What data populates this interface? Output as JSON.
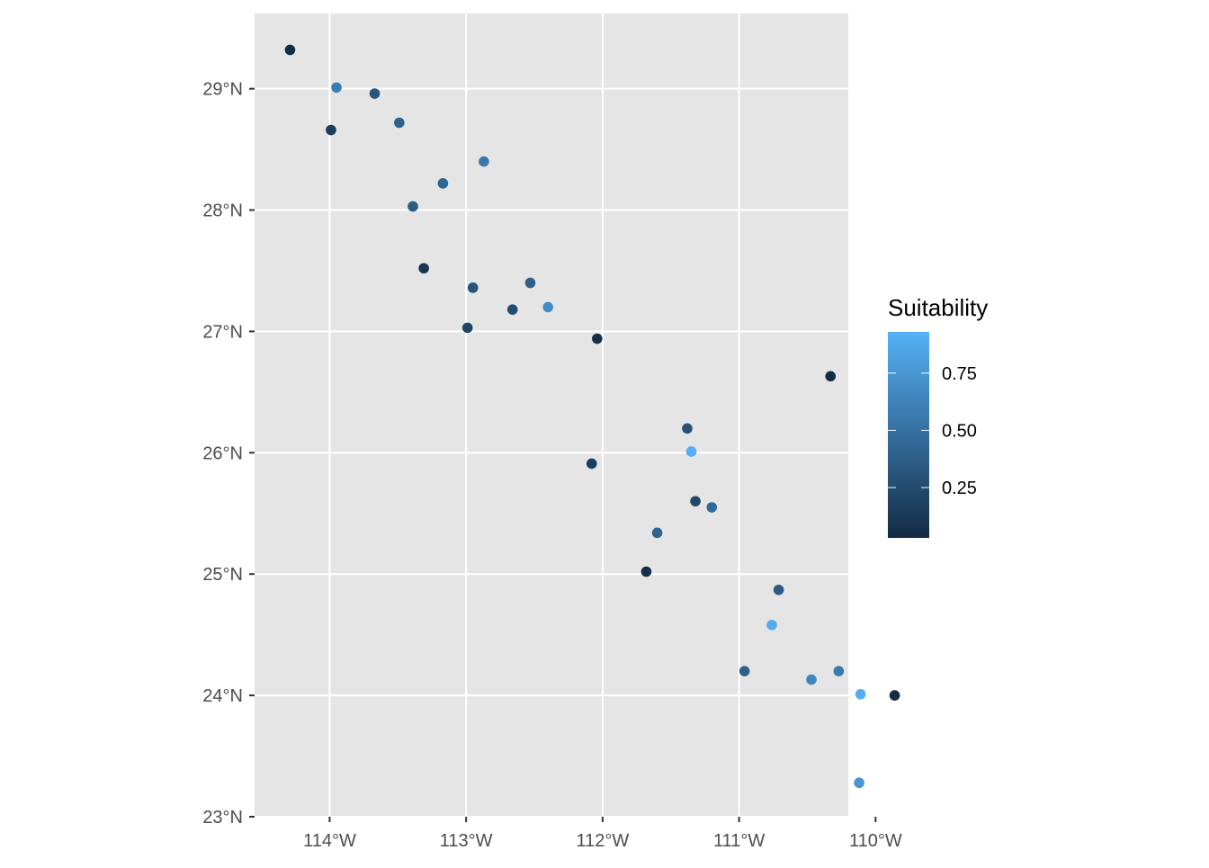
{
  "chart_data": {
    "type": "scatter",
    "title": "",
    "xlabel": "",
    "ylabel": "",
    "xlim": [
      -114.55,
      -110.2
    ],
    "ylim": [
      23.0,
      29.62
    ],
    "x_ticks": [
      {
        "value": -114,
        "label": "114°W"
      },
      {
        "value": -113,
        "label": "113°W"
      },
      {
        "value": -112,
        "label": "112°W"
      },
      {
        "value": -111,
        "label": "111°W"
      },
      {
        "value": -110,
        "label": "110°W"
      }
    ],
    "y_ticks": [
      {
        "value": 23,
        "label": "23°N"
      },
      {
        "value": 24,
        "label": "24°N"
      },
      {
        "value": 25,
        "label": "25°N"
      },
      {
        "value": 26,
        "label": "26°N"
      },
      {
        "value": 27,
        "label": "27°N"
      },
      {
        "value": 28,
        "label": "28°N"
      },
      {
        "value": 29,
        "label": "29°N"
      }
    ],
    "grid": true,
    "colors": {
      "panel_background": "#e5e5e5",
      "grid_line": "#ffffff",
      "low": "#132b43",
      "high": "#56b1f7"
    },
    "legend": {
      "title": "Suitability",
      "position": "right",
      "range": [
        0.03,
        0.93
      ],
      "breaks": [
        {
          "value": 0.25,
          "label": "0.25"
        },
        {
          "value": 0.5,
          "label": "0.50"
        },
        {
          "value": 0.75,
          "label": "0.75"
        }
      ]
    },
    "points": [
      {
        "lon": -114.29,
        "lat": 29.32,
        "suitability": 0.05
      },
      {
        "lon": -113.95,
        "lat": 29.01,
        "suitability": 0.58
      },
      {
        "lon": -113.67,
        "lat": 28.96,
        "suitability": 0.32
      },
      {
        "lon": -113.99,
        "lat": 28.66,
        "suitability": 0.15
      },
      {
        "lon": -113.49,
        "lat": 28.72,
        "suitability": 0.4
      },
      {
        "lon": -112.87,
        "lat": 28.4,
        "suitability": 0.55
      },
      {
        "lon": -113.17,
        "lat": 28.22,
        "suitability": 0.42
      },
      {
        "lon": -113.39,
        "lat": 28.03,
        "suitability": 0.35
      },
      {
        "lon": -113.31,
        "lat": 27.52,
        "suitability": 0.1
      },
      {
        "lon": -112.53,
        "lat": 27.4,
        "suitability": 0.38
      },
      {
        "lon": -112.95,
        "lat": 27.36,
        "suitability": 0.3
      },
      {
        "lon": -112.66,
        "lat": 27.18,
        "suitability": 0.25
      },
      {
        "lon": -112.4,
        "lat": 27.2,
        "suitability": 0.68
      },
      {
        "lon": -112.99,
        "lat": 27.03,
        "suitability": 0.2
      },
      {
        "lon": -112.04,
        "lat": 26.94,
        "suitability": 0.05
      },
      {
        "lon": -110.33,
        "lat": 26.63,
        "suitability": 0.04
      },
      {
        "lon": -111.38,
        "lat": 26.2,
        "suitability": 0.28
      },
      {
        "lon": -111.35,
        "lat": 26.01,
        "suitability": 0.92
      },
      {
        "lon": -112.08,
        "lat": 25.91,
        "suitability": 0.15
      },
      {
        "lon": -111.32,
        "lat": 25.6,
        "suitability": 0.22
      },
      {
        "lon": -111.2,
        "lat": 25.55,
        "suitability": 0.45
      },
      {
        "lon": -111.6,
        "lat": 25.34,
        "suitability": 0.4
      },
      {
        "lon": -111.68,
        "lat": 25.02,
        "suitability": 0.06
      },
      {
        "lon": -110.71,
        "lat": 24.87,
        "suitability": 0.35
      },
      {
        "lon": -110.76,
        "lat": 24.58,
        "suitability": 0.88
      },
      {
        "lon": -110.96,
        "lat": 24.2,
        "suitability": 0.38
      },
      {
        "lon": -110.27,
        "lat": 24.2,
        "suitability": 0.55
      },
      {
        "lon": -110.47,
        "lat": 24.13,
        "suitability": 0.65
      },
      {
        "lon": -110.11,
        "lat": 24.01,
        "suitability": 0.9
      },
      {
        "lon": -109.86,
        "lat": 24.0,
        "suitability": 0.04
      },
      {
        "lon": -110.12,
        "lat": 23.28,
        "suitability": 0.75
      }
    ]
  }
}
